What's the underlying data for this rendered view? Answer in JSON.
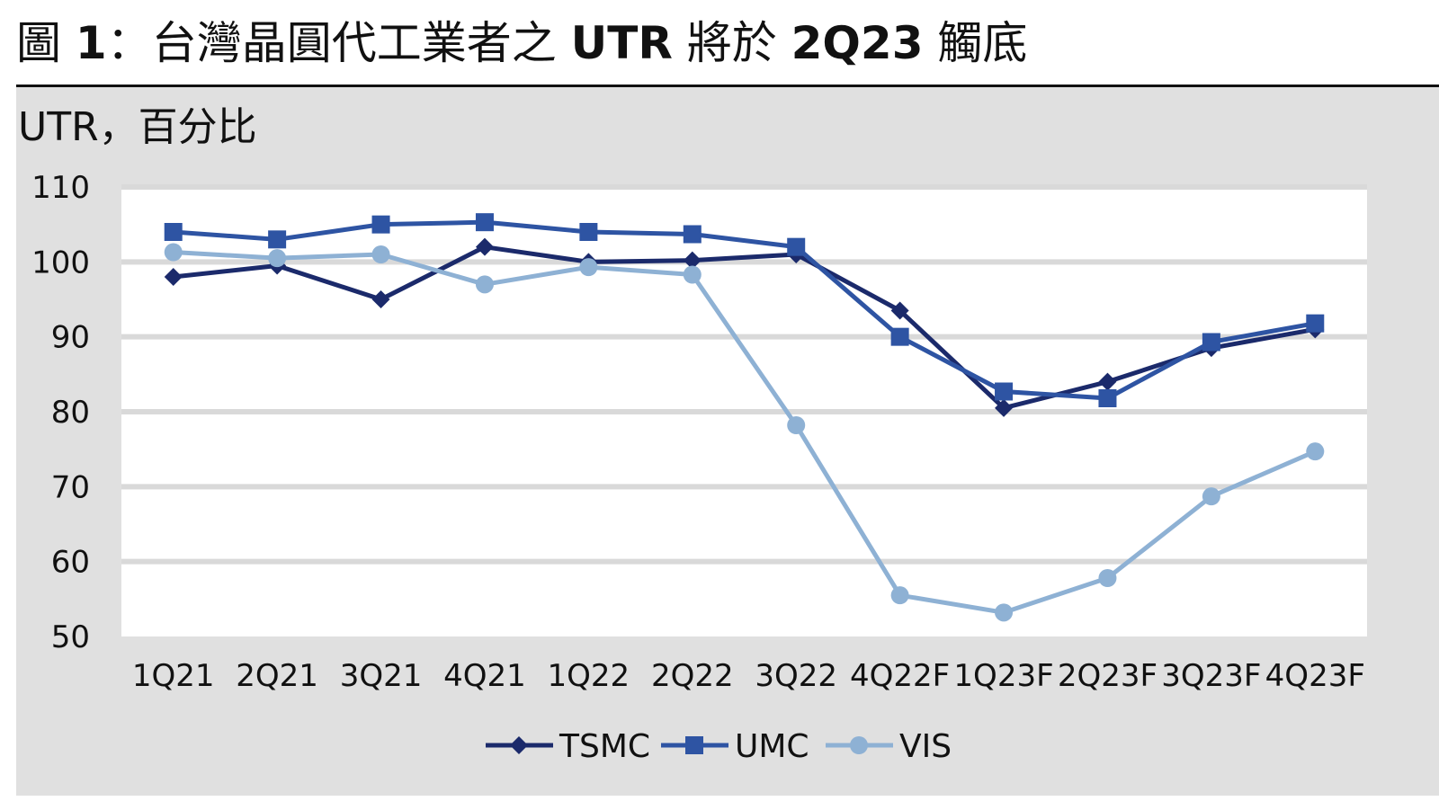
{
  "header": {
    "fig_label": "圖",
    "fig_num": "1",
    "colon": "：",
    "title_text": "台灣晶圓代工業者之",
    "title_bold1": "UTR",
    "title_mid": "將於",
    "title_bold2": "2Q23",
    "title_end": "觸底"
  },
  "chart_data": {
    "type": "line",
    "title": "圖 1：台灣晶圓代工業者之 UTR 將於 2Q23 觸底",
    "ylabel": "UTR，百分比",
    "xlabel": "",
    "ylim": [
      50,
      110
    ],
    "yticks": [
      110,
      100,
      90,
      80,
      70,
      60,
      50
    ],
    "grid": true,
    "legend_position": "bottom-center",
    "categories": [
      "1Q21",
      "2Q21",
      "3Q21",
      "4Q21",
      "1Q22",
      "2Q22",
      "3Q22",
      "4Q22F",
      "1Q23F",
      "2Q23F",
      "3Q23F",
      "4Q23F"
    ],
    "series": [
      {
        "name": "TSMC",
        "marker": "diamond",
        "color": "#1b2a6b",
        "values": [
          98,
          99.5,
          95,
          102,
          100,
          100.2,
          101,
          93.5,
          80.5,
          84,
          88.5,
          91
        ]
      },
      {
        "name": "UMC",
        "marker": "square",
        "color": "#2e54a3",
        "values": [
          104,
          103,
          105,
          105.3,
          104,
          103.7,
          102,
          90,
          82.7,
          81.8,
          89.3,
          91.8
        ]
      },
      {
        "name": "VIS",
        "marker": "circle",
        "color": "#8eb1d4",
        "values": [
          101.3,
          100.5,
          101,
          97,
          99.3,
          98.3,
          78.2,
          55.5,
          53.2,
          57.8,
          68.7,
          74.7
        ]
      }
    ]
  }
}
